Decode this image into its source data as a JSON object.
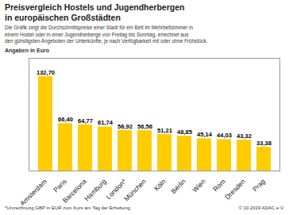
{
  "chart_data": {
    "type": "bar",
    "title": "Preisvergleich Hostels und Jugendherbergen\nin europäischen Großstädten",
    "subtitle": "Die Grafik zeigt die Durchschnittspreise einer Stadt für ein Bett im Mehrbettzimmer in\neinem Hostel oder in einer Jugendherberge von Freitag bis Sonntag, errechnet aus\nden günstigsten Angeboten der Unterkünfte, je nach Verfügbarkeit mit oder ohne Frühstück.",
    "ylabel": "Angaben in Euro",
    "annotations": [
      "*Umrechnung GBP in EUR zum Kurs am Tag der Erhebung",
      "© 10.2019  ADAC e.V."
    ],
    "categories": [
      "Amsterdam",
      "Paris",
      "Barcelona",
      "Hamburg",
      "London*",
      "München",
      "Köln",
      "Berlin",
      "Wien",
      "Rom",
      "Dresden",
      "Prag"
    ],
    "values": [
      132.7,
      66.4,
      64.77,
      61.74,
      56.92,
      56.56,
      51.21,
      48.85,
      45.14,
      44.03,
      43.32,
      33.38
    ],
    "value_labels": [
      "132,70",
      "66,40",
      "64,77",
      "61,74",
      "56,92",
      "56,56",
      "51,21",
      "48,85",
      "45,14",
      "44,03",
      "43,32",
      "33,38"
    ],
    "color": "#FFCC00",
    "ylim": [
      0,
      158
    ],
    "grid": false,
    "data_labels": true,
    "tick_labels": "x"
  }
}
